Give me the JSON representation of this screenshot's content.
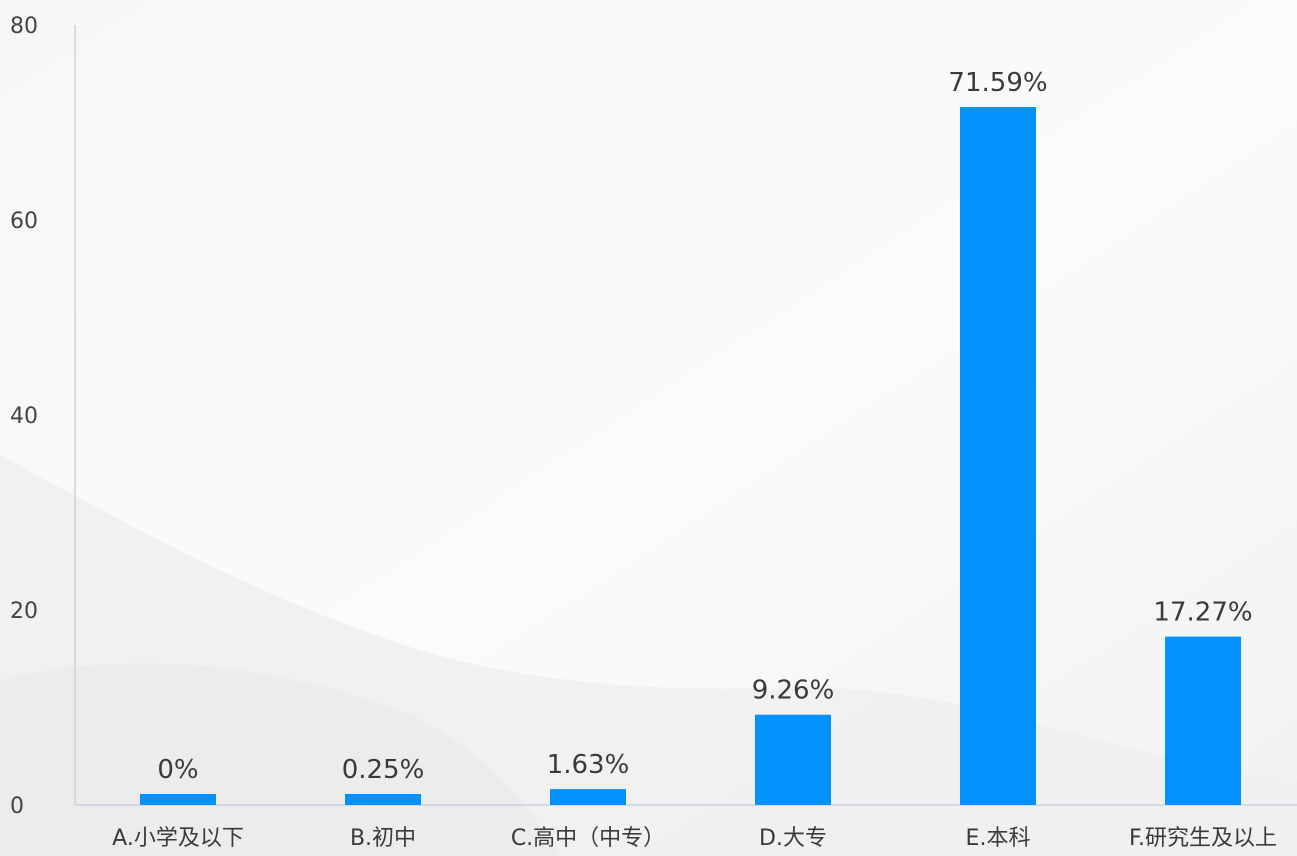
{
  "chart_data": {
    "type": "bar",
    "categories": [
      "A.小学及以下",
      "B.初中",
      "C.高中（中专）",
      "D.大专",
      "E.本科",
      "F.研究生及以上"
    ],
    "values": [
      0,
      0.25,
      1.63,
      9.26,
      71.59,
      17.27
    ],
    "data_labels": [
      "0%",
      "0.25%",
      "1.63%",
      "9.26%",
      "71.59%",
      "17.27%"
    ],
    "yticks": [
      "0",
      "20",
      "40",
      "60",
      "80"
    ],
    "ylim": [
      0,
      80
    ],
    "title": "",
    "xlabel": "",
    "ylabel": "",
    "grid": false,
    "bar_color": "#0391fd",
    "axis_color": "#c9d2e3"
  }
}
